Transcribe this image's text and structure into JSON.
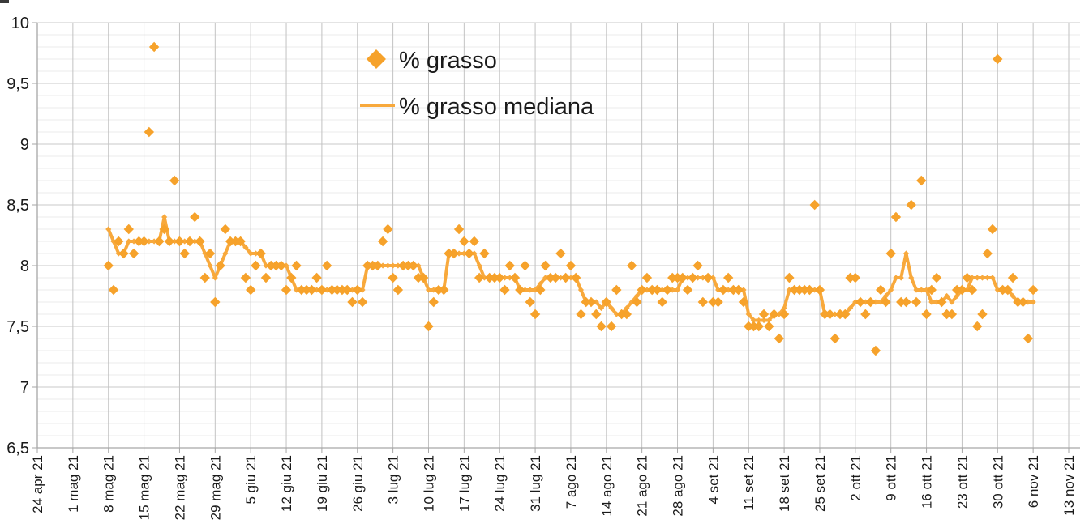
{
  "page": {
    "background": "#ffffff"
  },
  "legend": {
    "item1_label": "% grasso",
    "item2_label": "% grasso mediana"
  },
  "chart_data": {
    "type": "scatter",
    "title": "",
    "xlabel": "",
    "ylabel": "",
    "grid": true,
    "legend_position": "top-center",
    "colors": {
      "marker": "#F6A22B",
      "line": "#F8A93C",
      "axis": "#a6a6a6",
      "grid_major": "#c9c9c9",
      "grid_minor": "#ebebeb",
      "grid_vertical": "#c2c2c2",
      "text": "#1a1a1a"
    },
    "y_axis": {
      "min": 6.5,
      "max": 10,
      "major_step": 0.5,
      "minor_step": 0.1,
      "labels": [
        "10",
        "9,5",
        "9",
        "8,5",
        "8",
        "7,5",
        "7",
        "6,5"
      ]
    },
    "x_axis": {
      "tick_interval_days": 7,
      "start_label": "24 apr 21",
      "end_label": "13 nov 21",
      "labels": [
        "24 apr 21",
        "1 mag 21",
        "8 mag 21",
        "15 mag 21",
        "22 mag 21",
        "29 mag 21",
        "5 giu 21",
        "12 giu 21",
        "19 giu 21",
        "26 giu 21",
        "3 lug 21",
        "10 lug 21",
        "17 lug 21",
        "24 lug 21",
        "31 lug 21",
        "7 ago 21",
        "14 ago 21",
        "21 ago 21",
        "28 ago 21",
        "4 set 21",
        "11 set 21",
        "18 set 21",
        "25 set 21",
        "2 ott 21",
        "9 ott 21",
        "16 ott 21",
        "23 ott 21",
        "30 ott 21",
        "6 nov 21",
        "13 nov 21"
      ]
    },
    "series": [
      {
        "name": "% grasso",
        "type": "scatter",
        "marker": "diamond",
        "first_point_label": "8 mag 21",
        "start_day_offset": 14,
        "values": [
          8.0,
          7.8,
          8.2,
          8.1,
          8.3,
          8.1,
          8.2,
          8.2,
          9.1,
          9.8,
          8.2,
          8.3,
          8.2,
          8.7,
          8.2,
          8.1,
          8.2,
          8.4,
          8.2,
          7.9,
          8.1,
          7.7,
          8.0,
          8.3,
          8.2,
          8.2,
          8.2,
          7.9,
          7.8,
          8.0,
          8.1,
          7.9,
          8.0,
          8.0,
          8.0,
          7.8,
          7.9,
          8.0,
          7.8,
          7.8,
          7.8,
          7.9,
          7.8,
          8.0,
          7.8,
          7.8,
          7.8,
          7.8,
          7.7,
          7.8,
          7.7,
          8.0,
          8.0,
          8.0,
          8.2,
          8.3,
          7.9,
          7.8,
          8.0,
          8.0,
          8.0,
          7.9,
          7.9,
          7.5,
          7.7,
          7.8,
          7.8,
          8.1,
          8.1,
          8.3,
          8.2,
          8.1,
          8.2,
          7.9,
          8.1,
          7.9,
          7.9,
          7.9,
          7.8,
          8.0,
          7.9,
          7.8,
          8.0,
          7.7,
          7.6,
          7.8,
          8.0,
          7.9,
          7.9,
          8.1,
          7.9,
          8.0,
          7.9,
          7.6,
          7.7,
          7.7,
          7.6,
          7.5,
          7.7,
          7.5,
          7.8,
          7.6,
          7.6,
          8.0,
          7.7,
          7.8,
          7.9,
          7.8,
          7.8,
          7.7,
          7.8,
          7.9,
          7.9,
          7.9,
          7.8,
          7.9,
          8.0,
          7.7,
          7.9,
          7.7,
          7.7,
          7.8,
          7.9,
          7.8,
          7.8,
          7.7,
          7.5,
          7.5,
          7.5,
          7.6,
          7.5,
          7.6,
          7.4,
          7.6,
          7.9,
          7.8,
          7.8,
          7.8,
          7.8,
          8.5,
          7.8,
          7.6,
          7.6,
          7.4,
          7.6,
          7.6,
          7.9,
          7.9,
          7.7,
          7.6,
          7.7,
          7.3,
          7.8,
          7.7,
          8.1,
          8.4,
          7.7,
          7.7,
          8.5,
          7.7,
          8.7,
          7.6,
          7.8,
          7.9,
          7.7,
          7.6,
          7.6,
          7.8,
          7.8,
          7.9,
          7.8,
          7.5,
          7.6,
          8.1,
          8.3,
          9.7,
          7.8,
          7.8,
          7.9,
          7.7,
          7.7,
          7.4,
          7.8
        ]
      },
      {
        "name": "% grasso mediana",
        "type": "line",
        "marker": "small-diamond",
        "start_day_offset": 14,
        "values": [
          8.3,
          8.2,
          8.1,
          8.1,
          8.2,
          8.2,
          8.2,
          8.2,
          8.2,
          8.2,
          8.2,
          8.4,
          8.2,
          8.2,
          8.2,
          8.2,
          8.2,
          8.2,
          8.2,
          8.1,
          8.0,
          7.9,
          8.0,
          8.1,
          8.2,
          8.2,
          8.2,
          8.15,
          8.1,
          8.1,
          8.1,
          8.0,
          8.0,
          8.0,
          8.0,
          8.0,
          7.9,
          7.8,
          7.8,
          7.8,
          7.8,
          7.8,
          7.8,
          7.8,
          7.8,
          7.8,
          7.8,
          7.8,
          7.8,
          7.8,
          7.8,
          8.0,
          8.0,
          8.0,
          8.0,
          8.0,
          8.0,
          8.0,
          8.0,
          8.0,
          8.0,
          8.0,
          7.9,
          7.8,
          7.8,
          7.8,
          7.8,
          8.1,
          8.1,
          8.1,
          8.1,
          8.1,
          8.1,
          8.0,
          7.9,
          7.9,
          7.9,
          7.9,
          7.9,
          7.9,
          7.9,
          7.8,
          7.8,
          7.8,
          7.8,
          7.85,
          7.9,
          7.9,
          7.9,
          7.9,
          7.9,
          7.9,
          7.9,
          7.8,
          7.7,
          7.7,
          7.7,
          7.65,
          7.7,
          7.65,
          7.6,
          7.6,
          7.65,
          7.7,
          7.75,
          7.8,
          7.8,
          7.8,
          7.8,
          7.8,
          7.8,
          7.8,
          7.8,
          7.9,
          7.9,
          7.9,
          7.9,
          7.9,
          7.9,
          7.9,
          7.8,
          7.8,
          7.8,
          7.8,
          7.8,
          7.8,
          7.6,
          7.55,
          7.55,
          7.55,
          7.55,
          7.6,
          7.6,
          7.65,
          7.8,
          7.8,
          7.8,
          7.8,
          7.8,
          7.8,
          7.8,
          7.6,
          7.6,
          7.6,
          7.6,
          7.6,
          7.65,
          7.7,
          7.7,
          7.7,
          7.7,
          7.7,
          7.7,
          7.75,
          7.8,
          7.9,
          7.9,
          8.1,
          7.9,
          7.8,
          7.8,
          7.8,
          7.7,
          7.7,
          7.7,
          7.75,
          7.7,
          7.75,
          7.8,
          7.8,
          7.9,
          7.9,
          7.9,
          7.9,
          7.9,
          7.8,
          7.8,
          7.8,
          7.75,
          7.7,
          7.7,
          7.7,
          7.7
        ]
      }
    ]
  }
}
